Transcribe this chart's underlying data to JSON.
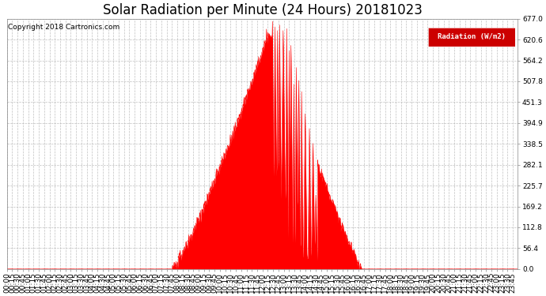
{
  "title": "Solar Radiation per Minute (24 Hours) 20181023",
  "copyright_text": "Copyright 2018 Cartronics.com",
  "legend_label": "Radiation (W/m2)",
  "ylim": [
    0.0,
    677.0
  ],
  "yticks": [
    0.0,
    56.4,
    112.8,
    169.2,
    225.7,
    282.1,
    338.5,
    394.9,
    451.3,
    507.8,
    564.2,
    620.6,
    677.0
  ],
  "fill_color": "#ff0000",
  "line_color": "#ff0000",
  "bg_color": "#ffffff",
  "grid_color": "#b0b0b0",
  "dashed_line_color": "#ff0000",
  "title_fontsize": 12,
  "tick_fontsize": 6.5,
  "legend_bg": "#cc0000"
}
